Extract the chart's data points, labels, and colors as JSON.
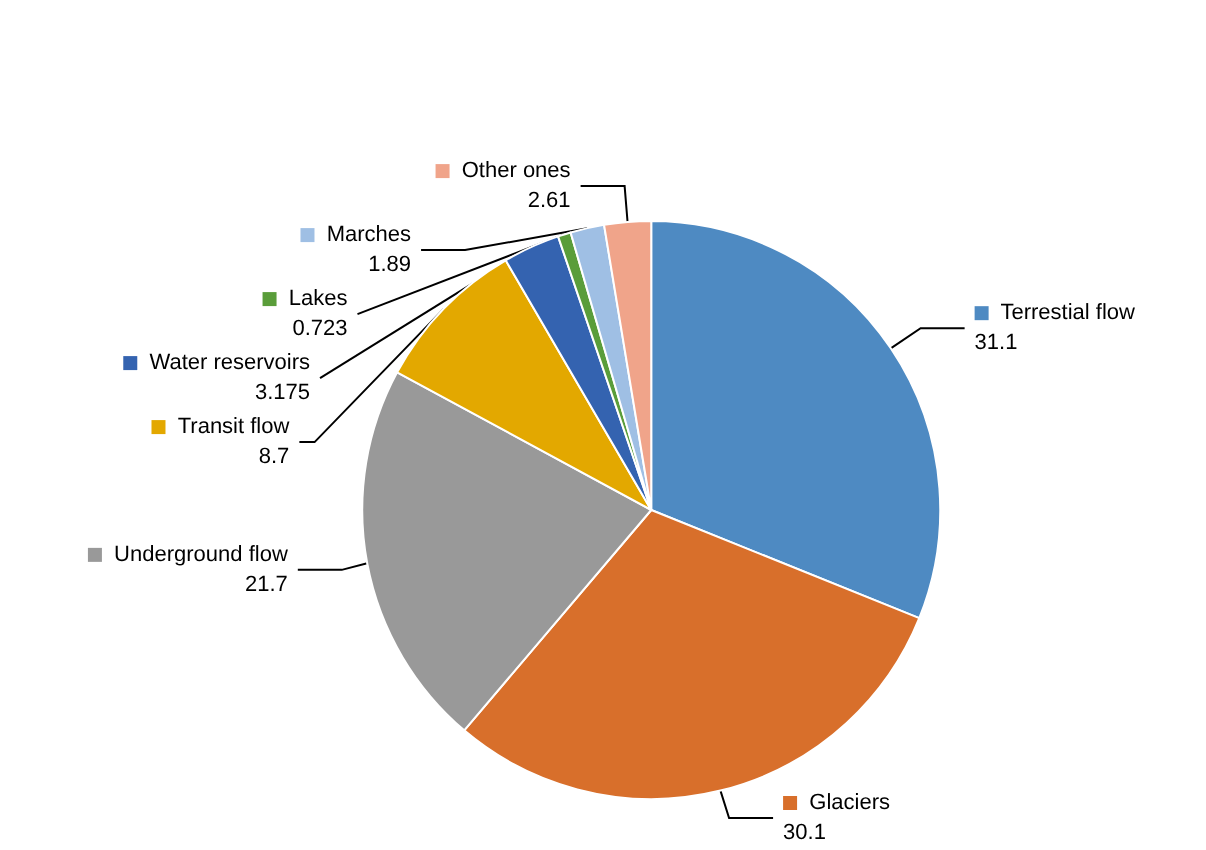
{
  "chart_data": {
    "type": "pie",
    "categories": [
      "Terrestial flow",
      "Glaciers",
      "Underground flow",
      "Transit flow",
      "Water reservoirs",
      "Lakes",
      "Marches",
      "Other ones"
    ],
    "values": [
      31.1,
      30.1,
      21.7,
      8.7,
      3.175,
      0.723,
      1.89,
      2.61
    ],
    "colors": [
      "#4e8ac2",
      "#d86f2b",
      "#999999",
      "#e3a800",
      "#3463b0",
      "#5a9d3a",
      "#9fbfe4",
      "#f0a48a"
    ],
    "data_labels": true,
    "legend": "top left"
  }
}
